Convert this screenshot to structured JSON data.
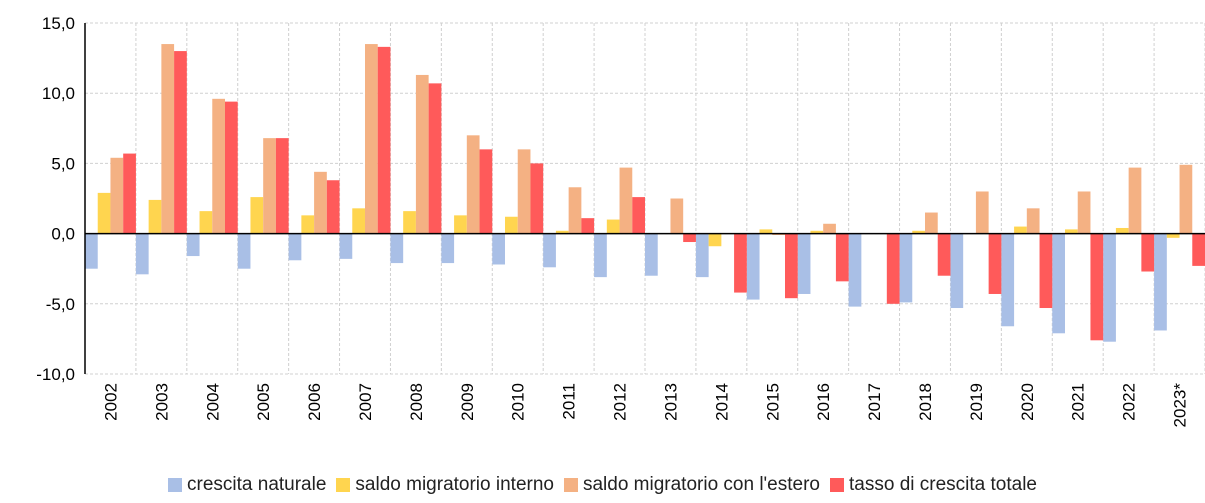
{
  "chart_data": {
    "type": "bar",
    "categories": [
      "2002",
      "2003",
      "2004",
      "2005",
      "2006",
      "2007",
      "2008",
      "2009",
      "2010",
      "2011",
      "2012",
      "2013",
      "2014",
      "2015",
      "2016",
      "2017",
      "2018",
      "2019",
      "2020",
      "2021",
      "2022",
      "2023*"
    ],
    "series": [
      {
        "name": "crescita naturale",
        "color": "#a9bfe6",
        "values": [
          -2.5,
          -2.9,
          -1.6,
          -2.5,
          -1.9,
          -1.8,
          -2.1,
          -2.1,
          -2.2,
          -2.4,
          -3.1,
          -3.0,
          -3.1,
          -4.7,
          -4.3,
          -5.2,
          -4.9,
          -5.3,
          -6.6,
          -7.1,
          -7.7,
          -6.9
        ]
      },
      {
        "name": "saldo migratorio interno",
        "color": "#ffd54f",
        "values": [
          2.9,
          2.4,
          1.6,
          2.6,
          1.3,
          1.8,
          1.6,
          1.3,
          1.2,
          0.2,
          1.0,
          0.0,
          -0.9,
          0.3,
          0.2,
          0.0,
          0.2,
          0.0,
          0.5,
          0.3,
          0.4,
          -0.3
        ]
      },
      {
        "name": "saldo migratorio con l'estero",
        "color": "#f4b183",
        "values": [
          5.4,
          13.5,
          9.6,
          6.8,
          4.4,
          13.5,
          11.3,
          7.0,
          6.0,
          3.3,
          4.7,
          2.5,
          0.0,
          -0.1,
          0.7,
          0.0,
          1.5,
          3.0,
          1.8,
          3.0,
          4.7,
          4.9
        ]
      },
      {
        "name": "tasso di crescita totale",
        "color": "#ff5a5a",
        "values": [
          5.7,
          13.0,
          9.4,
          6.8,
          3.8,
          13.3,
          10.7,
          6.0,
          5.0,
          1.1,
          2.6,
          -0.6,
          -4.2,
          -4.6,
          -3.4,
          -5.0,
          -3.0,
          -4.3,
          -5.3,
          -7.6,
          -2.7,
          -2.3
        ]
      }
    ],
    "ylim": [
      -10,
      15
    ],
    "yticks": [
      {
        "value": -10,
        "label": "-10,0"
      },
      {
        "value": -5,
        "label": "-5,0"
      },
      {
        "value": 0,
        "label": "0,0"
      },
      {
        "value": 5,
        "label": "5,0"
      },
      {
        "value": 10,
        "label": "10,0"
      },
      {
        "value": 15,
        "label": "15,0"
      }
    ],
    "grid": true
  }
}
